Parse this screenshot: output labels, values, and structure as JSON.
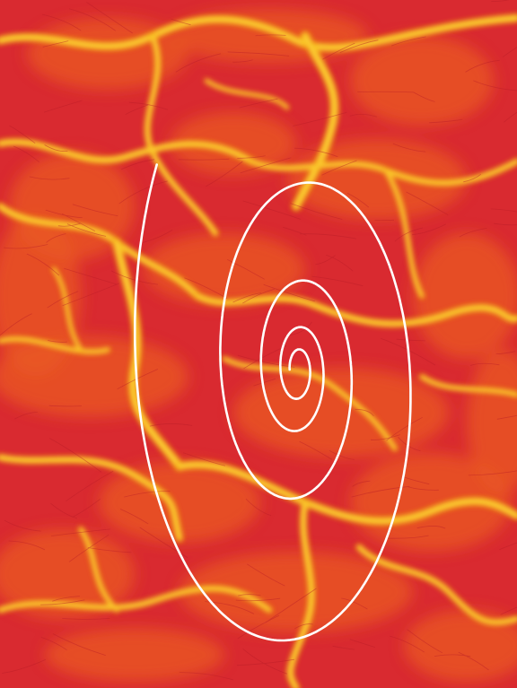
{
  "artwork": {
    "kind": "abstract caustic texture with spiral overlay",
    "colors": {
      "background_red": "#d92a30",
      "warm_orange": "#ea5a22",
      "vein_yellow": "#f6b80c",
      "spiral_line": "#ffffff",
      "edge_blue": "#1f66a8"
    },
    "icons": [
      "spiral-curve",
      "caustic-veins"
    ]
  }
}
